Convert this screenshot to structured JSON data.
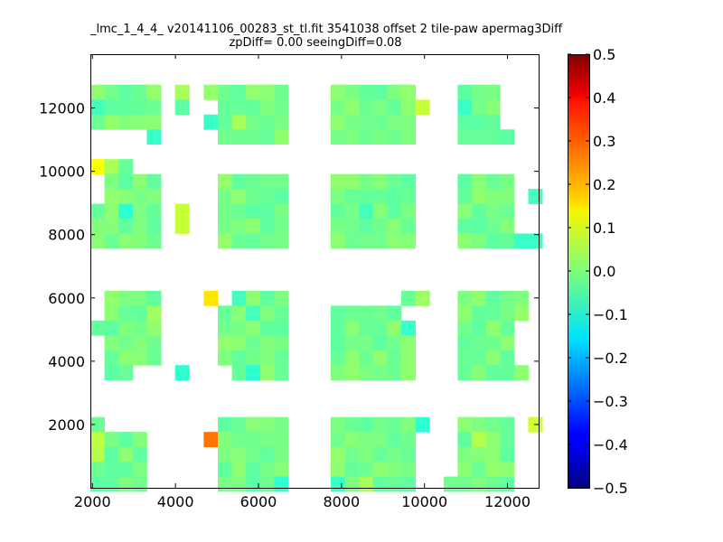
{
  "chart_data": {
    "type": "heatmap",
    "title": "_lmc_1_4_4_ v20141106_00283_st_tl.fit 3541038 offset 2 tile-paw apermag3Diff",
    "subtitle": "zpDiff= 0.00 seeingDiff=0.08",
    "xlim": [
      1950,
      12750
    ],
    "ylim": [
      0,
      13700
    ],
    "x_ticks": [
      2000,
      4000,
      6000,
      8000,
      10000,
      12000
    ],
    "y_ticks": [
      2000,
      4000,
      6000,
      8000,
      10000,
      12000
    ],
    "colorbar": {
      "colormap": "jet",
      "vmin": -0.5,
      "vmax": 0.5,
      "ticks": [
        "0.5",
        "0.4",
        "0.3",
        "0.2",
        "0.1",
        "0.0",
        "−0.1",
        "−0.2",
        "−0.3",
        "−0.4",
        "−0.5"
      ]
    },
    "cell_size": [
      340,
      470
    ],
    "x_columns": [
      2120,
      2460,
      2800,
      3140,
      3480,
      4160,
      4850,
      5190,
      5530,
      5870,
      6210,
      6550,
      7910,
      8250,
      8590,
      8930,
      9270,
      9610,
      9950,
      10630,
      10970,
      11310,
      11650,
      11990,
      12330,
      12670
    ],
    "y_rows": [
      12500,
      12030,
      11560,
      11090,
      10620,
      10150,
      9680,
      9210,
      8740,
      8270,
      7800,
      5990,
      5520,
      5050,
      4580,
      4110,
      3640,
      2000,
      1530,
      1060,
      590,
      120
    ],
    "cells": [
      {
        "x": 2120,
        "y": 10150,
        "v": 0.12
      },
      {
        "x": 2460,
        "y": 10150,
        "v": 0.04
      },
      {
        "x": 4850,
        "y": 5990,
        "v": 0.15
      },
      {
        "x": 4850,
        "y": 1530,
        "v": 0.26
      },
      {
        "x": 4160,
        "y": 12500,
        "v": 0.04
      },
      {
        "x": 4160,
        "y": 8740,
        "v": 0.07
      },
      {
        "x": 4160,
        "y": 8270,
        "v": 0.07
      },
      {
        "x": 9950,
        "y": 12030,
        "v": 0.07
      },
      {
        "x": 5530,
        "y": 11560,
        "v": 0.04
      },
      {
        "x": 4850,
        "y": 11560,
        "v": -0.07
      },
      {
        "x": 4160,
        "y": 3640,
        "v": -0.08
      },
      {
        "x": 5530,
        "y": 5990,
        "v": -0.06
      },
      {
        "x": 5870,
        "y": 5520,
        "v": -0.06
      },
      {
        "x": 5870,
        "y": 3640,
        "v": -0.08
      },
      {
        "x": 9610,
        "y": 5050,
        "v": -0.07
      },
      {
        "x": 9950,
        "y": 2000,
        "v": -0.08
      },
      {
        "x": 12670,
        "y": 2000,
        "v": 0.08
      },
      {
        "x": 6550,
        "y": 120,
        "v": -0.08
      },
      {
        "x": 7910,
        "y": 120,
        "v": -0.07
      },
      {
        "x": 8590,
        "y": 120,
        "v": 0.04
      },
      {
        "x": 2800,
        "y": 8740,
        "v": -0.08
      },
      {
        "x": 8590,
        "y": 8740,
        "v": -0.06
      },
      {
        "x": 2120,
        "y": 12030,
        "v": -0.06
      },
      {
        "x": 10970,
        "y": 12030,
        "v": -0.07
      },
      {
        "x": 3480,
        "y": 11090,
        "v": -0.07
      },
      {
        "x": 12330,
        "y": 7800,
        "v": -0.07
      },
      {
        "x": 12670,
        "y": 7800,
        "v": -0.07
      },
      {
        "x": 12670,
        "y": 9210,
        "v": -0.06
      },
      {
        "x": 2120,
        "y": 1530,
        "v": 0.06
      },
      {
        "x": 2120,
        "y": 1060,
        "v": 0.05
      },
      {
        "x": 11310,
        "y": 1530,
        "v": 0.05
      },
      {
        "x": 9950,
        "y": 5990,
        "v": 0.03
      },
      {
        "x": 3480,
        "y": 5520,
        "v": 0.03
      }
    ]
  }
}
